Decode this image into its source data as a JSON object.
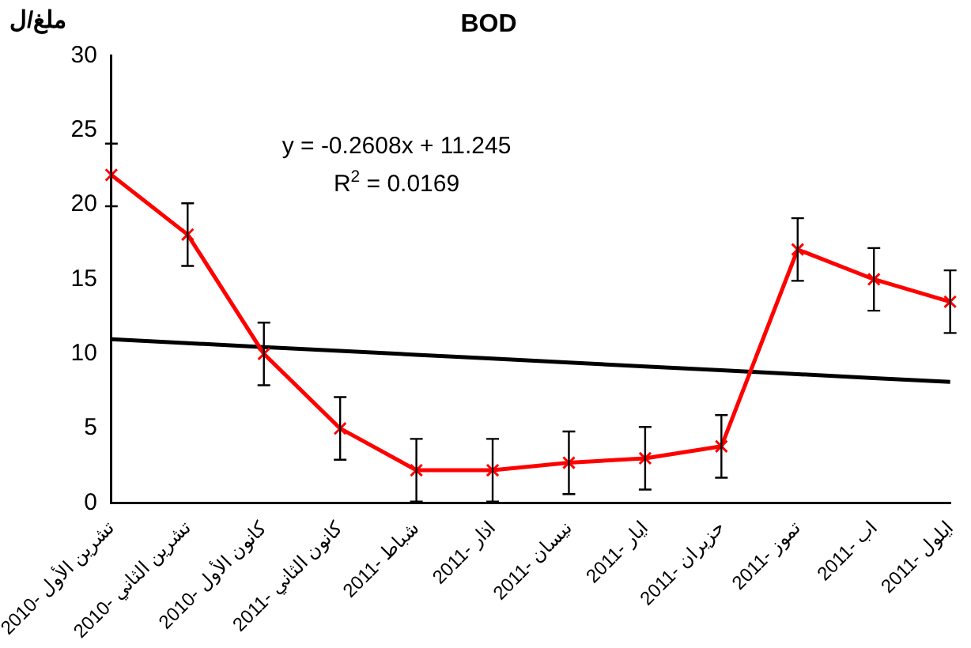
{
  "chart_data": {
    "type": "line",
    "title": "BOD",
    "ylabel": "ملغ/ل",
    "categories": [
      "تشرين الأول -2010",
      "تشرين الثاني -2010",
      "كانون الأول -2010",
      "كانون الثاني -2011",
      "شباط -2011",
      "اذار -2011",
      "نيسان -2011",
      "ايار -2011",
      "حزيران -2011",
      "تموز -2011",
      "اب -2011",
      "ايلول -2011"
    ],
    "series": [
      {
        "color": "#ff0000",
        "values": [
          22,
          18,
          10,
          5,
          2.2,
          2.2,
          2.7,
          3,
          3.8,
          17,
          15,
          13.5
        ],
        "errors": [
          2.1,
          2.1,
          2.1,
          2.1,
          2.1,
          2.1,
          2.1,
          2.1,
          2.1,
          2.1,
          2.1,
          2.1
        ],
        "marker": "cross"
      },
      {
        "color": "#000000",
        "values": [
          10.98,
          10.72,
          10.46,
          10.2,
          9.94,
          9.68,
          9.42,
          9.16,
          8.9,
          8.64,
          8.38,
          8.12
        ],
        "marker": "none"
      }
    ],
    "ylim": [
      0,
      30
    ],
    "yticks": [
      0,
      5,
      10,
      15,
      20,
      25,
      30
    ],
    "grid": false,
    "legend": false,
    "annotations": [
      "y = -0.2608x + 11.245",
      "R$^{2}$ = 0.0169"
    ]
  }
}
